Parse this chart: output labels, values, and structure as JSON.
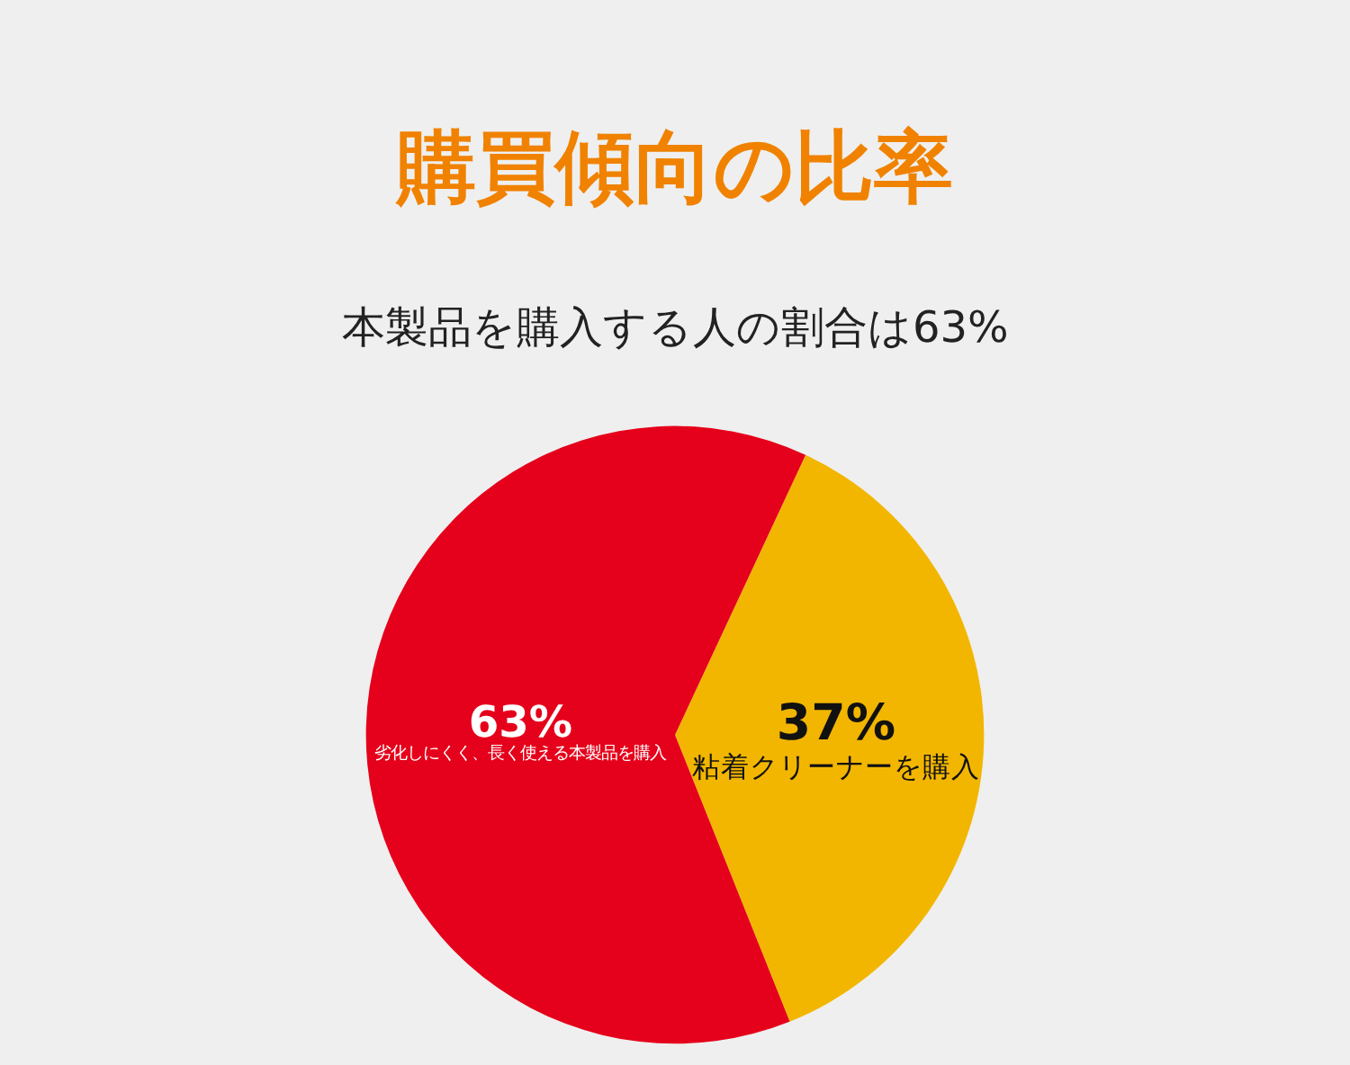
{
  "chart_data": {
    "type": "pie",
    "title": "購買傾向の比率",
    "subtitle": "本製品を購入する人の割合は63%",
    "categories": [
      "粘着クリーナーを購入",
      "劣化しにくく、長く使える本製品を購入"
    ],
    "values": [
      37,
      63
    ],
    "colors": [
      "#f2b600",
      "#e5001b"
    ],
    "value_labels": [
      "37%",
      "63%"
    ],
    "legend": false
  }
}
